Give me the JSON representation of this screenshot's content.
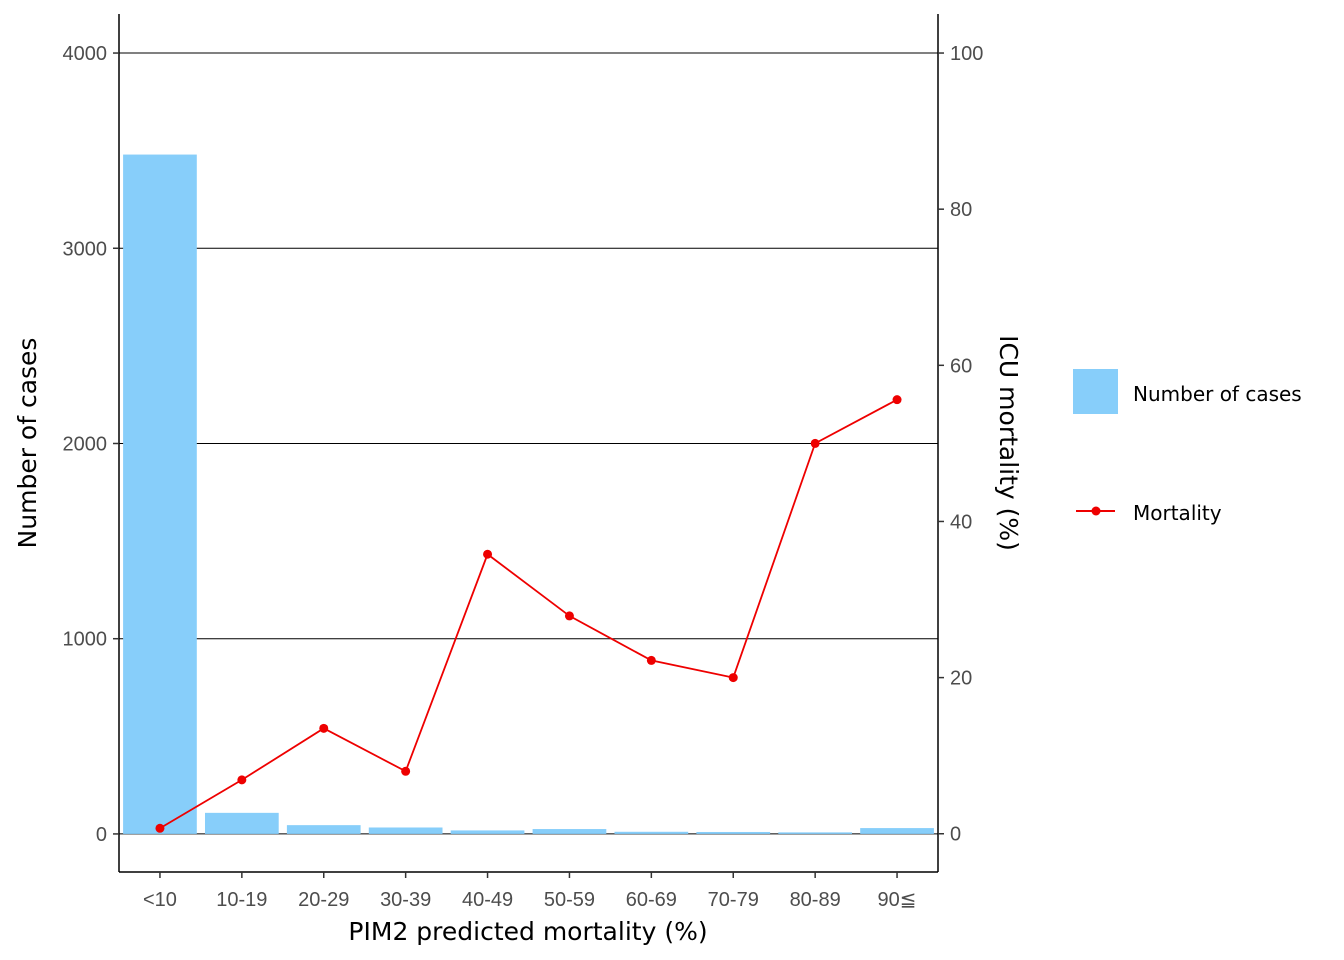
{
  "chart_data": {
    "type": "bar",
    "categories": [
      "<10",
      "10-19",
      "20-29",
      "30-39",
      "40-49",
      "50-59",
      "60-69",
      "70-79",
      "80-89",
      "90≦"
    ],
    "series": [
      {
        "name": "Number of cases",
        "type": "bar",
        "axis": "left",
        "color": "#87CEFA",
        "values": [
          3480,
          108,
          45,
          33,
          18,
          25,
          11,
          10,
          8,
          30
        ]
      },
      {
        "name": "Mortality",
        "type": "line",
        "axis": "right",
        "color": "#EE0000",
        "values": [
          0.7,
          6.9,
          13.5,
          8.0,
          35.8,
          27.9,
          22.2,
          20.0,
          50.0,
          55.6
        ]
      }
    ],
    "xlabel": "PIM2 predicted mortality (%)",
    "ylabel": "Number of cases",
    "y2label": "ICU mortality (%)",
    "ylim": [
      -195,
      4200
    ],
    "y2lim": [
      -4.9,
      105
    ],
    "yticks": [
      0,
      1000,
      2000,
      3000,
      4000
    ],
    "y2ticks": [
      0,
      20,
      40,
      60,
      80,
      100
    ],
    "grid": "horizontal major lines at left-axis ticks",
    "legend_position": "right",
    "legend": [
      {
        "label": "Number of cases",
        "kind": "bar-swatch",
        "color": "#87CEFA"
      },
      {
        "label": "Mortality",
        "kind": "line-point",
        "color": "#EE0000"
      }
    ]
  }
}
